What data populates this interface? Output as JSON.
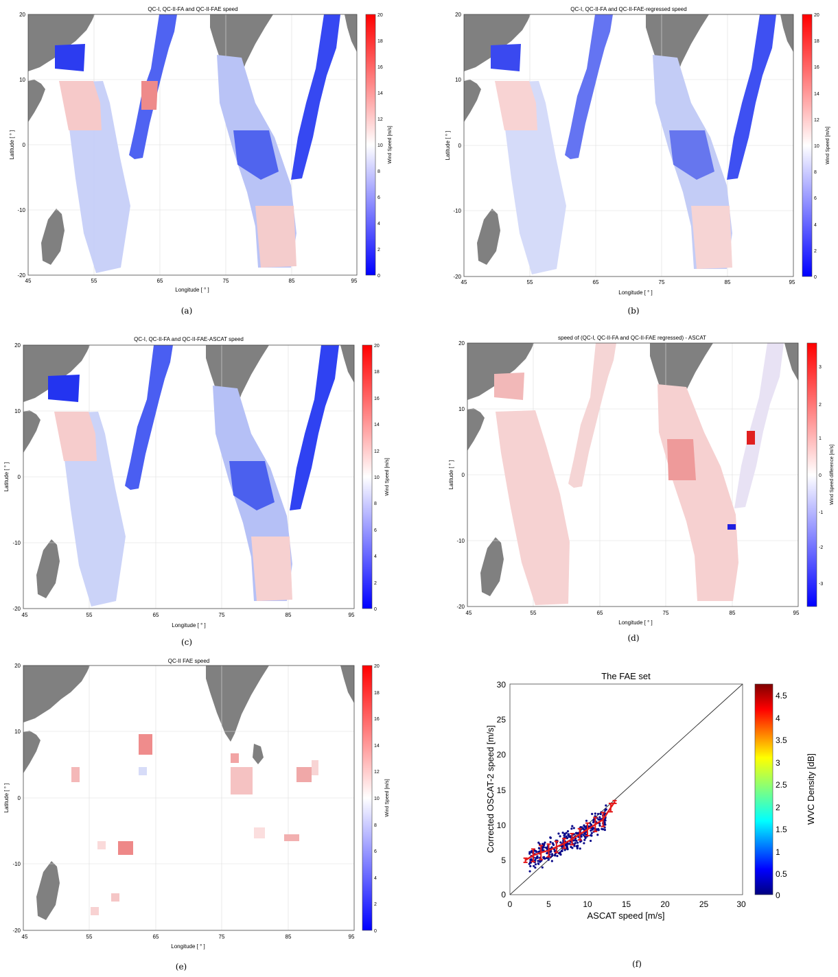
{
  "panels": [
    {
      "id": "a",
      "title": "QC-I, QC-II-FA and QC-II-FAE speed",
      "xlabel": "Longitude [ ° ]",
      "ylabel": "Latitude [ ° ]",
      "cbar_label": "Wind Speed [m/s]",
      "caption": "(a)"
    },
    {
      "id": "b",
      "title": "QC-I, QC-II-FA and QC-II-FAE-regressed speed",
      "xlabel": "Longitude [ ° ]",
      "ylabel": "Latitude [ ° ]",
      "cbar_label": "Wind Speed [m/s]",
      "caption": "(b)"
    },
    {
      "id": "c",
      "title": "QC-I, QC-II-FA and QC-II-FAE-ASCAT speed",
      "xlabel": "Longitude [ ° ]",
      "ylabel": "Latitude [ ° ]",
      "cbar_label": "Wind Speed [m/s]",
      "caption": "(c)"
    },
    {
      "id": "d",
      "title": "speed of (QC-I, QC-II-FA and QC-II-FAE regressed) - ASCAT",
      "xlabel": "Longitude [ ° ]",
      "ylabel": "Latitude [ ° ]",
      "cbar_label": "Wind Speed difference [m/s]",
      "caption": "(d)"
    },
    {
      "id": "e",
      "title": "QC-II FAE speed",
      "xlabel": "Longitude [ ° ]",
      "ylabel": "Latitude [ ° ]",
      "cbar_label": "Wind Speed [m/s]",
      "caption": "(e)"
    }
  ],
  "map_common": {
    "x_ticks": [
      "45",
      "55",
      "65",
      "75",
      "85",
      "95"
    ],
    "y_ticks": [
      "20",
      "10",
      "0",
      "-10",
      "-20"
    ],
    "cbar_ticks_speed": [
      "20",
      "18",
      "16",
      "14",
      "12",
      "10",
      "8",
      "6",
      "4",
      "2",
      "0"
    ],
    "cbar_ticks_diff": [
      "3",
      "2",
      "1",
      "0",
      "-1",
      "-2",
      "-3"
    ],
    "land_color": "#808080",
    "low_color": "#0000ff",
    "high_color": "#ff0000"
  },
  "scatter": {
    "title": "The FAE set",
    "xlabel": "ASCAT speed [m/s]",
    "ylabel": "Corrected OSCAT-2 speed [m/s]",
    "cbar_label": "WVC Density [dB]",
    "caption": "(f)",
    "x_ticks": [
      "0",
      "5",
      "10",
      "15",
      "20",
      "25",
      "30"
    ],
    "y_ticks": [
      "30",
      "25",
      "20",
      "15",
      "10",
      "5",
      "0"
    ],
    "cbar_ticks": [
      "4.5",
      "4",
      "3.5",
      "3",
      "2.5",
      "2",
      "1.5",
      "1",
      "0.5",
      "0"
    ]
  },
  "chart_data": [
    {
      "type": "heatmap",
      "title": "QC-I, QC-II-FA and QC-II-FAE speed",
      "xlabel": "Longitude [ ° ]",
      "ylabel": "Latitude [ ° ]",
      "xlim": [
        45,
        95
      ],
      "ylim": [
        -20,
        20
      ],
      "colorbar": {
        "label": "Wind Speed [m/s]",
        "range": [
          0,
          20
        ]
      }
    },
    {
      "type": "heatmap",
      "title": "QC-I, QC-II-FA and QC-II-FAE-regressed speed",
      "xlabel": "Longitude [ ° ]",
      "ylabel": "Latitude [ ° ]",
      "xlim": [
        45,
        95
      ],
      "ylim": [
        -20,
        20
      ],
      "colorbar": {
        "label": "Wind Speed [m/s]",
        "range": [
          0,
          20
        ]
      }
    },
    {
      "type": "heatmap",
      "title": "QC-I, QC-II-FA and QC-II-FAE-ASCAT speed",
      "xlabel": "Longitude [ ° ]",
      "ylabel": "Latitude [ ° ]",
      "xlim": [
        45,
        95
      ],
      "ylim": [
        -20,
        20
      ],
      "colorbar": {
        "label": "Wind Speed [m/s]",
        "range": [
          0,
          20
        ]
      }
    },
    {
      "type": "heatmap",
      "title": "speed of (QC-I, QC-II-FA and QC-II-FAE regressed) - ASCAT",
      "xlabel": "Longitude [ ° ]",
      "ylabel": "Latitude [ ° ]",
      "xlim": [
        45,
        95
      ],
      "ylim": [
        -20,
        20
      ],
      "colorbar": {
        "label": "Wind Speed difference [m/s]",
        "range": [
          -3.5,
          3.5
        ]
      }
    },
    {
      "type": "heatmap",
      "title": "QC-II FAE speed",
      "xlabel": "Longitude [ ° ]",
      "ylabel": "Latitude [ ° ]",
      "xlim": [
        45,
        95
      ],
      "ylim": [
        -20,
        20
      ],
      "colorbar": {
        "label": "Wind Speed [m/s]",
        "range": [
          0,
          20
        ]
      }
    },
    {
      "type": "scatter",
      "title": "The FAE set",
      "xlabel": "ASCAT speed [m/s]",
      "ylabel": "Corrected OSCAT-2 speed [m/s]",
      "xlim": [
        0,
        30
      ],
      "ylim": [
        0,
        30
      ],
      "reference_line": [
        [
          0,
          0
        ],
        [
          30,
          30
        ]
      ],
      "binned_mean": {
        "x": [
          2,
          3,
          4,
          5,
          6,
          7,
          8,
          9,
          10,
          11,
          12,
          13,
          13.5
        ],
        "y": [
          4.9,
          5.6,
          6.0,
          6.3,
          6.8,
          7.3,
          7.9,
          8.6,
          9.3,
          10.0,
          10.7,
          12.4,
          13.2
        ],
        "err": [
          0.3,
          0.9,
          1.0,
          0.9,
          0.8,
          0.7,
          0.8,
          0.8,
          0.9,
          1.0,
          1.0,
          0.6,
          0.2
        ]
      },
      "colorbar": {
        "label": "WVC Density [dB]",
        "range": [
          0,
          4.7
        ]
      }
    }
  ]
}
